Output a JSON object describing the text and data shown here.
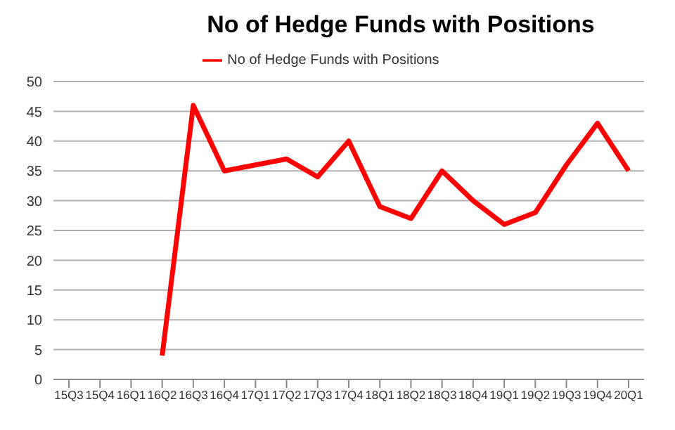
{
  "chart_data": {
    "type": "line",
    "title": "No of Hedge Funds with Positions",
    "categories": [
      "15Q3",
      "15Q4",
      "16Q1",
      "16Q2",
      "16Q3",
      "16Q4",
      "17Q1",
      "17Q2",
      "17Q3",
      "17Q4",
      "18Q1",
      "18Q2",
      "18Q3",
      "18Q4",
      "19Q1",
      "19Q2",
      "19Q3",
      "19Q4",
      "20Q1"
    ],
    "series": [
      {
        "name": "No of Hedge Funds with Positions",
        "color": "#ff0000",
        "values": [
          null,
          null,
          null,
          4,
          46,
          35,
          36,
          37,
          34,
          40,
          29,
          27,
          35,
          30,
          26,
          28,
          36,
          43,
          35
        ]
      }
    ],
    "ylim": [
      0,
      50
    ],
    "yticks": [
      0,
      5,
      10,
      15,
      20,
      25,
      30,
      35,
      40,
      45,
      50
    ],
    "grid": "y",
    "legend": "top",
    "marker": "none",
    "line_style": "solid"
  }
}
